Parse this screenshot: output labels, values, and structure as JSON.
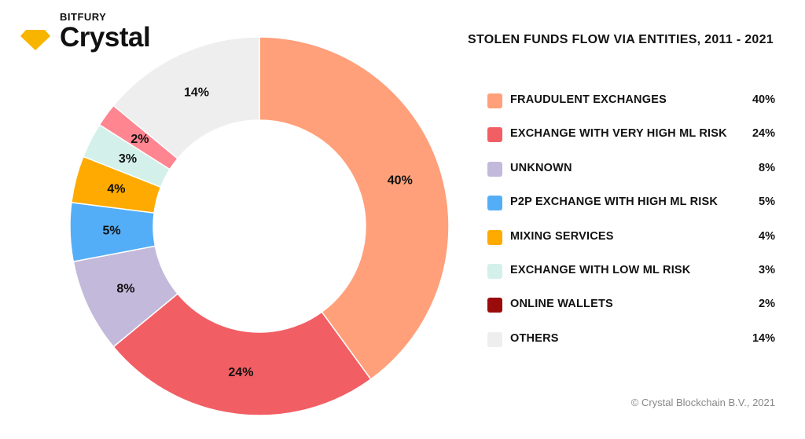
{
  "brand": {
    "company": "BITFURY",
    "product": "Crystal",
    "logo_color": "#f7b500"
  },
  "footer": {
    "copyright": "© Crystal Blockchain B.V., 2021"
  },
  "chart_data": {
    "type": "pie",
    "variant": "donut",
    "title": "STOLEN FUNDS FLOW VIA ENTITIES, 2011 - 2021",
    "unit": "%",
    "legend_position": "right",
    "slices": [
      {
        "label": "FRAUDULENT EXCHANGES",
        "value": 40,
        "display": "40%",
        "color": "#ffa07a",
        "show_on_chart": true
      },
      {
        "label": "EXCHANGE WITH VERY HIGH ML RISK",
        "value": 24,
        "display": "24%",
        "color": "#f15e64",
        "show_on_chart": true
      },
      {
        "label": "UNKNOWN",
        "value": 8,
        "display": "8%",
        "color": "#c3b9db",
        "show_on_chart": true
      },
      {
        "label": "P2P EXCHANGE WITH HIGH ML RISK",
        "value": 5,
        "display": "5%",
        "color": "#54aef7",
        "show_on_chart": true
      },
      {
        "label": "MIXING SERVICES",
        "value": 4,
        "display": "4%",
        "color": "#ffaa00",
        "show_on_chart": true
      },
      {
        "label": "EXCHANGE WITH LOW ML RISK",
        "value": 3,
        "display": "3%",
        "color": "#d3f1ea",
        "show_on_chart": true
      },
      {
        "label": "ONLINE WALLETS",
        "value": 2,
        "display": "2%",
        "color": "#9a0b0b",
        "show_on_chart": false
      },
      {
        "label": "OTHERS",
        "value": 14,
        "display": "14%",
        "color": "#eeeeee",
        "show_on_chart": true
      }
    ],
    "chart_only_slices": [
      {
        "display": "2%",
        "value": 2,
        "color": "#ff8591",
        "after_slice": 5
      }
    ]
  }
}
